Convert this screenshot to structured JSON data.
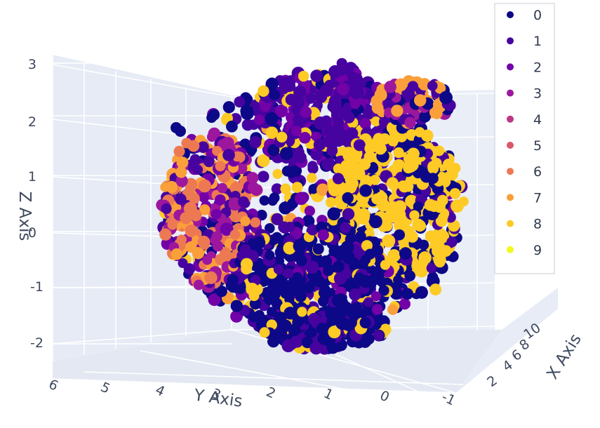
{
  "chart_data": {
    "type": "scatter",
    "dimensions": 3,
    "xlabel": "X Axis",
    "ylabel": "Y Axis",
    "zlabel": "Z Axis",
    "x_ticks": [
      "2",
      "4",
      "6",
      "8",
      "10"
    ],
    "y_ticks": [
      "6",
      "5",
      "4",
      "3",
      "2",
      "1",
      "0",
      "-1"
    ],
    "z_ticks": [
      "3",
      "2",
      "1",
      "0",
      "-1",
      "-2"
    ],
    "zlim": [
      -2.3,
      3.1
    ],
    "grid": true,
    "legend_position": "top-right",
    "series": [
      {
        "name": "0",
        "color": "#0d0887"
      },
      {
        "name": "1",
        "color": "#46039f"
      },
      {
        "name": "2",
        "color": "#7201a8"
      },
      {
        "name": "3",
        "color": "#9c179e"
      },
      {
        "name": "4",
        "color": "#bd3786"
      },
      {
        "name": "5",
        "color": "#d8576b"
      },
      {
        "name": "6",
        "color": "#ed7953"
      },
      {
        "name": "7",
        "color": "#fb9f3a"
      },
      {
        "name": "8",
        "color": "#fdca26"
      },
      {
        "name": "9",
        "color": "#f0f921"
      }
    ]
  }
}
